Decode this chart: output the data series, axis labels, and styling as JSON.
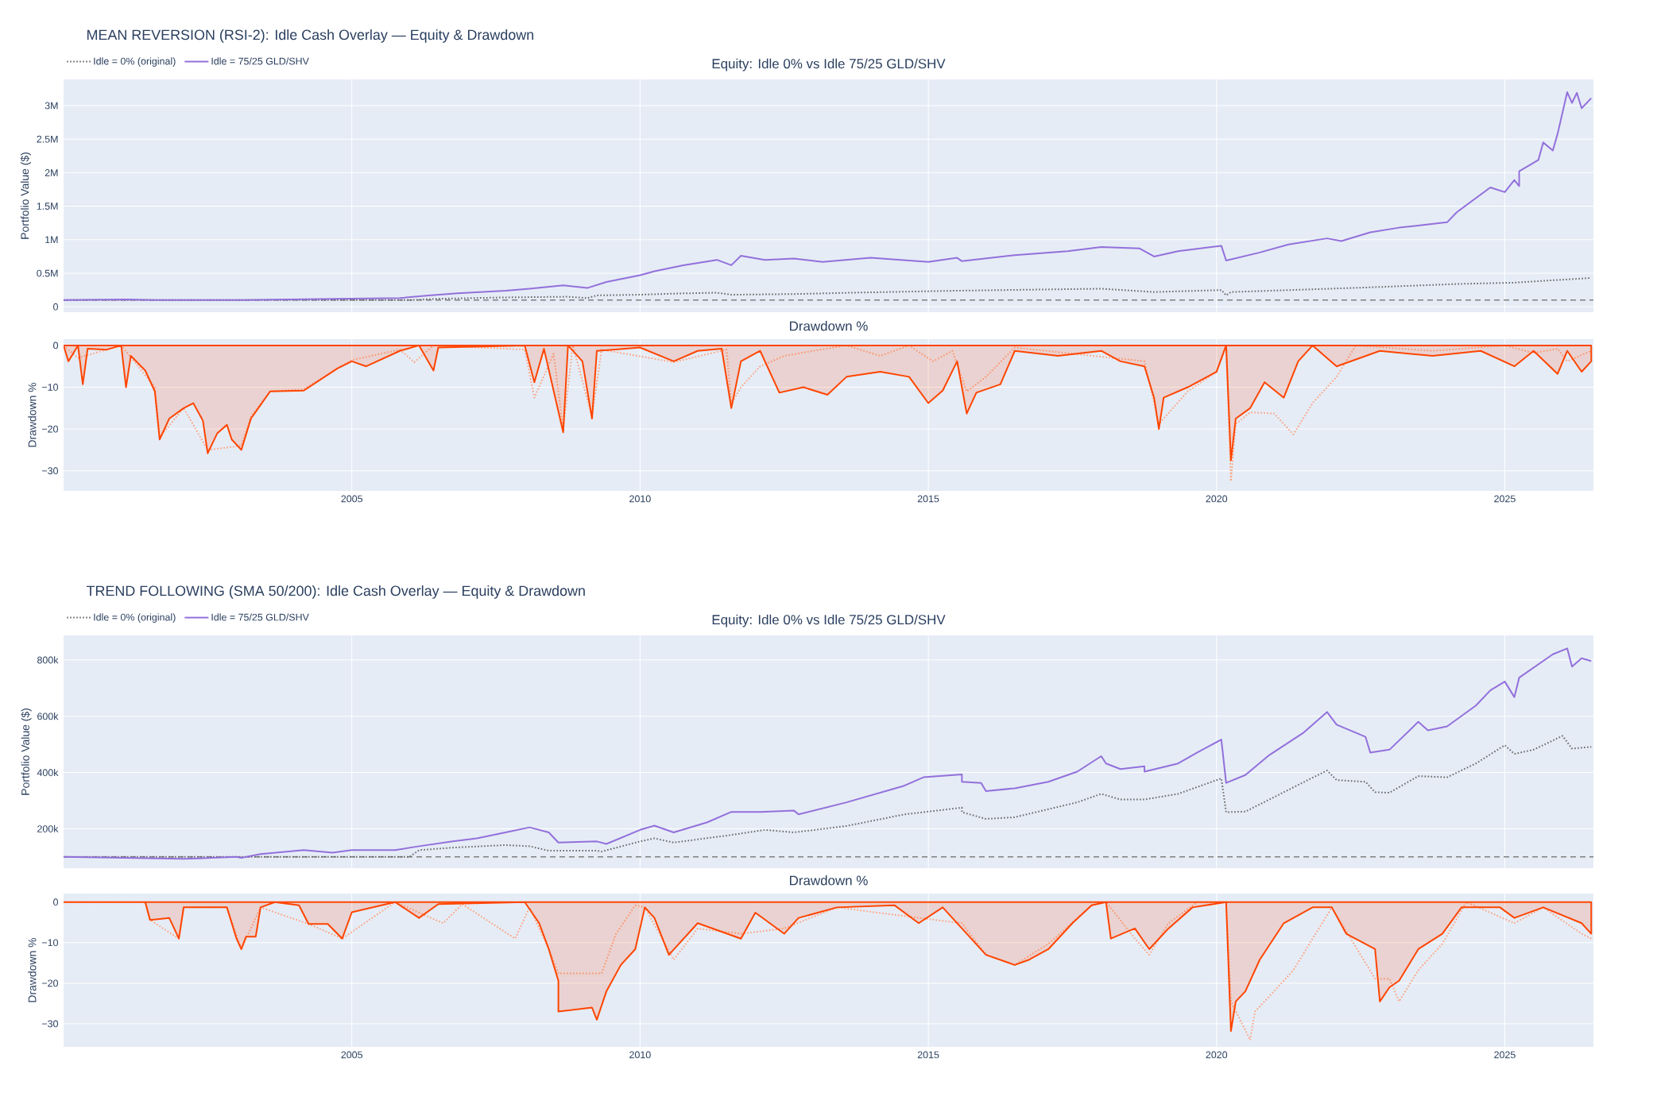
{
  "chart_data": [
    {
      "type": "line",
      "title": "MEAN REVERSION (RSI-2): Idle Cash Overlay — Equity & Drawdown",
      "subtitle": "Equity: Idle 0% vs Idle 75/25 GLD/SHV",
      "ylabel": "Portfolio Value ($)",
      "xlim": [
        "2000-01-01",
        "2026-07-15"
      ],
      "ylim": [
        -80000,
        3390000
      ],
      "xticks": [
        {
          "value": "2005-01-01",
          "label": null
        },
        {
          "value": "2010-01-01",
          "label": null
        },
        {
          "value": "2015-01-01",
          "label": null
        },
        {
          "value": "2020-01-01",
          "label": null
        },
        {
          "value": "2025-01-01",
          "label": null
        }
      ],
      "yticks": [
        0,
        {
          "value": 500000,
          "label": "0.5M"
        },
        {
          "value": 1000000,
          "label": "1M"
        },
        {
          "value": 1500000,
          "label": "1.5M"
        },
        {
          "value": 2000000,
          "label": "2M"
        },
        {
          "value": 2500000,
          "label": "2.5M"
        },
        {
          "value": 3000000,
          "label": "3M"
        }
      ],
      "tick_labels": "y",
      "grid": true,
      "legend": "top left",
      "ref_lines": [
        {
          "axis": "y",
          "value": 100000,
          "color": "#808080",
          "line_style": "dashed"
        }
      ],
      "series": [
        {
          "name": "Idle = 0% (original)",
          "color": "#696969",
          "line_style": "dotted",
          "x": [
            "2000-01",
            "2006-01",
            "2006-07",
            "2007-09",
            "2008-10",
            "2009-02",
            "2009-04",
            "2010-01",
            "2010-10",
            "2011-05",
            "2011-08",
            "2012-09",
            "2013-09",
            "2015-07",
            "2018-01",
            "2018-12",
            "2020-02",
            "2020-03",
            "2020-04",
            "2022-09",
            "2024-03",
            "2025-03",
            "2026-07"
          ],
          "values": [
            100000,
            100000,
            120000,
            140000,
            150000,
            130000,
            170000,
            180000,
            200000,
            210000,
            180000,
            190000,
            210000,
            240000,
            270000,
            220000,
            250000,
            170000,
            220000,
            290000,
            340000,
            360000,
            430000
          ]
        },
        {
          "name": "Idle = 75/25 GLD/SHV",
          "color": "#9370DB",
          "x": [
            "2000-01",
            "2001-02",
            "2001-08",
            "2002-08",
            "2003-02",
            "2005-01",
            "2005-11",
            "2006-05",
            "2006-11",
            "2007-09",
            "2008-02",
            "2008-09",
            "2009-02",
            "2009-06",
            "2010-01",
            "2010-04",
            "2010-10",
            "2011-05",
            "2011-08",
            "2011-10",
            "2012-03",
            "2012-09",
            "2013-03",
            "2014-01",
            "2015-01",
            "2015-07",
            "2015-08",
            "2016-07",
            "2017-06",
            "2018-01",
            "2018-09",
            "2018-12",
            "2019-05",
            "2020-02",
            "2020-03",
            "2020-10",
            "2021-04",
            "2021-12",
            "2022-03",
            "2022-09",
            "2023-03",
            "2023-08",
            "2024-01",
            "2024-03",
            "2024-10",
            "2025-01",
            "2025-03",
            "2025-04",
            "2025-04",
            "2025-08",
            "2025-09",
            "2025-11",
            "2025-12",
            "2026-02",
            "2026-03",
            "2026-04",
            "2026-05",
            "2026-07"
          ],
          "values": [
            100000,
            110000,
            100000,
            100000,
            100000,
            120000,
            130000,
            170000,
            200000,
            240000,
            270000,
            320000,
            280000,
            370000,
            470000,
            530000,
            620000,
            700000,
            620000,
            760000,
            700000,
            720000,
            670000,
            730000,
            670000,
            730000,
            680000,
            770000,
            830000,
            890000,
            870000,
            750000,
            830000,
            910000,
            690000,
            810000,
            930000,
            1020000,
            980000,
            1110000,
            1180000,
            1220000,
            1260000,
            1410000,
            1780000,
            1710000,
            1890000,
            1800000,
            2020000,
            2190000,
            2450000,
            2330000,
            2580000,
            3200000,
            3040000,
            3190000,
            2960000,
            3110000
          ]
        }
      ]
    },
    {
      "type": "line",
      "title": "Drawdown %",
      "ylabel": "Drawdown %",
      "xlim": [
        "2000-01-01",
        "2026-07-15"
      ],
      "ylim": [
        -34.8,
        1.5
      ],
      "xticks": [
        {
          "value": "2005-01-01",
          "label": "2005"
        },
        {
          "value": "2010-01-01",
          "label": "2010"
        },
        {
          "value": "2015-01-01",
          "label": "2015"
        },
        {
          "value": "2020-01-01",
          "label": "2020"
        },
        {
          "value": "2025-01-01",
          "label": "2025"
        }
      ],
      "yticks": [
        {
          "value": -30,
          "label": "−30"
        },
        {
          "value": -20,
          "label": "−20"
        },
        {
          "value": -10,
          "label": "−10"
        },
        0
      ],
      "grid": true,
      "series": [
        {
          "color": "#FFA07A",
          "line_style": "dotted",
          "x": [
            "2000-01",
            "2000-04",
            "2001-01",
            "2001-08",
            "2001-09",
            "2002-02",
            "2002-07",
            "2003-02",
            "2003-04",
            "2003-08",
            "2004-03",
            "2004-10",
            "2005-01",
            "2005-11",
            "2006-02",
            "2006-06",
            "2008-01",
            "2008-03",
            "2008-07",
            "2008-09",
            "2008-11",
            "2009-03",
            "2009-05",
            "2010-08",
            "2011-07",
            "2011-08",
            "2011-10",
            "2012-02",
            "2012-07",
            "2013-01",
            "2013-08",
            "2014-03",
            "2014-09",
            "2015-02",
            "2015-06",
            "2015-09",
            "2016-01",
            "2016-07",
            "2018-10",
            "2019-01",
            "2019-07",
            "2020-01",
            "2020-03",
            "2020-04",
            "2020-05",
            "2020-08",
            "2021-01",
            "2021-05",
            "2021-09",
            "2022-02",
            "2022-06",
            "2023-10",
            "2025-01",
            "2025-07",
            "2025-12",
            "2026-02",
            "2026-07"
          ],
          "values": [
            0,
            -3,
            0,
            -10,
            -22,
            -15,
            -25,
            -24,
            -17,
            -11,
            -10.5,
            -5.5,
            -3.5,
            -1,
            -4,
            0,
            -1,
            -12.5,
            -2,
            -20,
            0,
            -17,
            -1,
            -4,
            -1,
            -14,
            -10,
            -5,
            -2.5,
            -1.3,
            0,
            -2.5,
            0,
            -3.8,
            -1.3,
            -11,
            -7.5,
            -0.5,
            -3.8,
            -18.8,
            -11,
            -6.3,
            0,
            -32.5,
            -18.8,
            -16,
            -16.3,
            -21.3,
            -13.8,
            -7.5,
            0,
            -1.3,
            0,
            -1.8,
            -0.8,
            -3.8,
            -1.3
          ]
        },
        {
          "type": "area",
          "color": "#FF4500",
          "x": [
            "2000-01",
            "2000-02",
            "2000-04",
            "2000-05",
            "2000-06",
            "2000-10",
            "2001-01",
            "2001-02",
            "2001-03",
            "2001-06",
            "2001-08",
            "2001-09",
            "2001-11",
            "2002-02",
            "2002-04",
            "2002-06",
            "2002-07",
            "2002-09",
            "2002-11",
            "2002-12",
            "2003-02",
            "2003-04",
            "2003-08",
            "2004-03",
            "2004-10",
            "2005-01",
            "2005-04",
            "2005-11",
            "2006-03",
            "2006-06",
            "2006-07",
            "2008-01",
            "2008-03",
            "2008-05",
            "2008-09",
            "2008-10",
            "2009-01",
            "2009-03",
            "2009-04",
            "2010-01",
            "2010-08",
            "2011-01",
            "2011-06",
            "2011-08",
            "2011-10",
            "2012-02",
            "2012-06",
            "2012-11",
            "2013-04",
            "2013-08",
            "2014-03",
            "2014-09",
            "2015-01",
            "2015-04",
            "2015-07",
            "2015-09",
            "2015-11",
            "2016-04",
            "2016-07",
            "2017-04",
            "2018-01",
            "2018-05",
            "2018-10",
            "2018-12",
            "2019-01",
            "2019-02",
            "2019-07",
            "2020-01",
            "2020-03",
            "2020-04",
            "2020-05",
            "2020-08",
            "2020-11",
            "2021-03",
            "2021-06",
            "2021-09",
            "2022-02",
            "2022-11",
            "2023-10",
            "2024-08",
            "2025-03",
            "2025-07",
            "2025-12",
            "2026-02",
            "2026-05",
            "2026-07"
          ],
          "values": [
            0,
            -3.8,
            0,
            -9.3,
            -0.8,
            -1,
            0,
            -10,
            -2.5,
            -6,
            -11,
            -22.5,
            -17.5,
            -15,
            -13.8,
            -18,
            -25.8,
            -21,
            -19,
            -22.5,
            -25,
            -17.5,
            -11,
            -10.8,
            -5.5,
            -3.8,
            -5,
            -1.3,
            0,
            -6,
            -0.5,
            0,
            -8.8,
            -0.8,
            -20.8,
            0,
            -3.8,
            -17.5,
            -1.3,
            -0.5,
            -3.8,
            -1.3,
            -0.8,
            -15,
            -3.8,
            -1.3,
            -11.3,
            -10,
            -11.8,
            -7.5,
            -6.3,
            -7.5,
            -13.8,
            -10.8,
            -3.8,
            -16.3,
            -11.3,
            -9.3,
            -1.3,
            -2.5,
            -1.3,
            -3.8,
            -5,
            -12.5,
            -20,
            -12.5,
            -10,
            -6.3,
            0,
            -27.5,
            -17.5,
            -15,
            -8.8,
            -12.5,
            -3.8,
            0,
            -5,
            -1.3,
            -2.5,
            -1.3,
            -5,
            -1.3,
            -6.8,
            -1.3,
            -6.3,
            -3.8
          ]
        }
      ]
    },
    {
      "type": "line",
      "title": "TREND FOLLOWING (SMA 50/200): Idle Cash Overlay — Equity & Drawdown",
      "subtitle": "Equity: Idle 0% vs Idle 75/25 GLD/SHV",
      "ylabel": "Portfolio Value ($)",
      "xlim": [
        "2000-01-01",
        "2026-07-15"
      ],
      "ylim": [
        60000,
        887000
      ],
      "xticks": [
        {
          "value": "2005-01-01",
          "label": null
        },
        {
          "value": "2010-01-01",
          "label": null
        },
        {
          "value": "2015-01-01",
          "label": null
        },
        {
          "value": "2020-01-01",
          "label": null
        },
        {
          "value": "2025-01-01",
          "label": null
        }
      ],
      "yticks": [
        {
          "value": 200000,
          "label": "200k"
        },
        {
          "value": 400000,
          "label": "400k"
        },
        {
          "value": 600000,
          "label": "600k"
        },
        {
          "value": 800000,
          "label": "800k"
        }
      ],
      "tick_labels": "y",
      "grid": true,
      "legend": "top left",
      "ref_lines": [
        {
          "axis": "y",
          "value": 100000,
          "color": "#808080",
          "line_style": "dashed"
        }
      ],
      "series": [
        {
          "name": "Idle = 0% (original)",
          "color": "#696969",
          "line_style": "dotted",
          "x": [
            "2000-01",
            "2006-01",
            "2006-03",
            "2006-10",
            "2007-09",
            "2008-02",
            "2008-06",
            "2009-04",
            "2009-05",
            "2010-01",
            "2010-04",
            "2010-08",
            "2011-08",
            "2012-03",
            "2012-09",
            "2013-08",
            "2014-08",
            "2015-08",
            "2015-08",
            "2016-01",
            "2016-07",
            "2017-08",
            "2018-01",
            "2018-05",
            "2018-10",
            "2019-05",
            "2020-02",
            "2020-03",
            "2020-07",
            "2020-12",
            "2021-08",
            "2021-12",
            "2022-02",
            "2022-08",
            "2022-10",
            "2023-01",
            "2023-07",
            "2024-01",
            "2024-07",
            "2025-01",
            "2025-03",
            "2025-07",
            "2026-01",
            "2026-03",
            "2026-07"
          ],
          "values": [
            100000,
            100000,
            124000,
            133000,
            142000,
            138000,
            122000,
            122000,
            119000,
            155000,
            166000,
            151000,
            178000,
            196000,
            187000,
            210000,
            251000,
            275000,
            259000,
            235000,
            241000,
            294000,
            324000,
            304000,
            304000,
            324000,
            379000,
            259000,
            261000,
            304000,
            373000,
            407000,
            373000,
            367000,
            330000,
            328000,
            387000,
            383000,
            432000,
            497000,
            466000,
            481000,
            530000,
            485000,
            491000
          ]
        },
        {
          "name": "Idle = 75/25 GLD/SHV",
          "color": "#9370DB",
          "x": [
            "2000-01",
            "2002-02",
            "2003-01",
            "2003-02",
            "2003-06",
            "2004-03",
            "2004-09",
            "2005-01",
            "2005-10",
            "2006-03",
            "2006-10",
            "2007-03",
            "2007-09",
            "2008-02",
            "2008-06",
            "2008-08",
            "2009-04",
            "2009-06",
            "2010-01",
            "2010-04",
            "2010-08",
            "2011-03",
            "2011-08",
            "2012-02",
            "2012-09",
            "2012-10",
            "2013-08",
            "2014-08",
            "2014-12",
            "2015-08",
            "2015-08",
            "2015-12",
            "2016-01",
            "2016-07",
            "2017-02",
            "2017-08",
            "2018-01",
            "2018-02",
            "2018-05",
            "2018-10",
            "2018-10",
            "2019-05",
            "2019-09",
            "2020-02",
            "2020-03",
            "2020-07",
            "2020-12",
            "2021-07",
            "2021-12",
            "2022-02",
            "2022-08",
            "2022-09",
            "2023-01",
            "2023-07",
            "2023-09",
            "2024-01",
            "2024-07",
            "2024-10",
            "2025-01",
            "2025-03",
            "2025-04",
            "2025-11",
            "2026-02",
            "2026-03",
            "2026-05",
            "2026-07"
          ],
          "values": [
            100000,
            93000,
            100000,
            97000,
            110000,
            124000,
            115000,
            124000,
            124000,
            138000,
            155000,
            166000,
            187000,
            205000,
            187000,
            151000,
            155000,
            146000,
            196000,
            211000,
            187000,
            223000,
            260000,
            260000,
            265000,
            251000,
            294000,
            353000,
            383000,
            393000,
            367000,
            363000,
            334000,
            344000,
            367000,
            403000,
            458000,
            432000,
            412000,
            422000,
            403000,
            432000,
            471000,
            517000,
            363000,
            391000,
            462000,
            540000,
            615000,
            570000,
            527000,
            471000,
            481000,
            580000,
            550000,
            564000,
            638000,
            692000,
            723000,
            668000,
            737000,
            820000,
            841000,
            776000,
            806000,
            796000
          ]
        }
      ]
    },
    {
      "type": "line",
      "title": "Drawdown %",
      "ylabel": "Drawdown %",
      "xlim": [
        "2000-01-01",
        "2026-07-15"
      ],
      "ylim": [
        -35.7,
        2.1
      ],
      "xticks": [
        {
          "value": "2005-01-01",
          "label": "2005"
        },
        {
          "value": "2010-01-01",
          "label": "2010"
        },
        {
          "value": "2015-01-01",
          "label": "2015"
        },
        {
          "value": "2020-01-01",
          "label": "2020"
        },
        {
          "value": "2025-01-01",
          "label": "2025"
        }
      ],
      "yticks": [
        {
          "value": -30,
          "label": "−30"
        },
        {
          "value": -20,
          "label": "−20"
        },
        {
          "value": -10,
          "label": "−10"
        },
        0
      ],
      "grid": true,
      "series": [
        {
          "color": "#FFA07A",
          "line_style": "dotted",
          "x": [
            "2000-01",
            "2001-06",
            "2001-07",
            "2002-01",
            "2002-02",
            "2002-11",
            "2003-02",
            "2003-06",
            "2004-04",
            "2004-11",
            "2005-10",
            "2006-08",
            "2006-12",
            "2007-11",
            "2008-02",
            "2008-06",
            "2008-08",
            "2009-05",
            "2009-08",
            "2009-12",
            "2010-02",
            "2010-08",
            "2011-01",
            "2011-10",
            "2012-07",
            "2013-06",
            "2014-11",
            "2015-08",
            "2016-01",
            "2016-07",
            "2017-02",
            "2017-11",
            "2018-02",
            "2018-08",
            "2018-11",
            "2019-03",
            "2019-09",
            "2020-03",
            "2020-04",
            "2020-08",
            "2020-09",
            "2020-11",
            "2021-05",
            "2021-09",
            "2022-01",
            "2022-10",
            "2023-01",
            "2023-03",
            "2023-07",
            "2023-12",
            "2024-05",
            "2025-03",
            "2025-09",
            "2026-05",
            "2026-07"
          ],
          "values": [
            0,
            0,
            -4.4,
            -9,
            -1.3,
            -1.3,
            -11.6,
            -1.3,
            -5.4,
            -9,
            0,
            -5.2,
            -0.5,
            -9,
            -1.3,
            -11.6,
            -17.6,
            -17.6,
            -7.8,
            -0.8,
            -1.3,
            -14.2,
            -6.5,
            -7.8,
            -6.5,
            -1.3,
            -3.9,
            -5.2,
            -13,
            -15.5,
            -10.3,
            -0.8,
            0,
            -9,
            -13,
            -5.2,
            0,
            0,
            -24.5,
            -34,
            -27,
            -24.5,
            -16.8,
            -9,
            -1.3,
            -18.9,
            -18.9,
            -24.5,
            -16.8,
            -10.3,
            0,
            -5.2,
            -1.3,
            -7.8,
            -9
          ]
        },
        {
          "type": "area",
          "color": "#FF4500",
          "x": [
            "2000-01",
            "2001-06",
            "2001-07",
            "2001-11",
            "2002-01",
            "2002-02",
            "2002-11",
            "2003-01",
            "2003-02",
            "2003-03",
            "2003-05",
            "2003-06",
            "2003-09",
            "2004-02",
            "2004-04",
            "2004-08",
            "2004-11",
            "2005-01",
            "2005-10",
            "2006-03",
            "2006-07",
            "2008-01",
            "2008-04",
            "2008-06",
            "2008-08",
            "2008-08",
            "2009-03",
            "2009-04",
            "2009-06",
            "2009-09",
            "2009-12",
            "2010-02",
            "2010-04",
            "2010-07",
            "2011-01",
            "2011-10",
            "2012-01",
            "2012-07",
            "2012-10",
            "2013-06",
            "2014-06",
            "2014-11",
            "2015-04",
            "2015-08",
            "2016-01",
            "2016-07",
            "2016-10",
            "2017-02",
            "2017-07",
            "2017-11",
            "2018-02",
            "2018-03",
            "2018-08",
            "2018-11",
            "2019-03",
            "2019-08",
            "2020-03",
            "2020-04",
            "2020-05",
            "2020-07",
            "2020-10",
            "2021-03",
            "2021-09",
            "2022-01",
            "2022-04",
            "2022-10",
            "2022-11",
            "2023-01",
            "2023-03",
            "2023-07",
            "2023-12",
            "2024-04",
            "2024-12",
            "2025-03",
            "2025-09",
            "2026-05",
            "2026-07"
          ],
          "values": [
            0,
            0,
            -4.4,
            -3.9,
            -9,
            -1.3,
            -1.3,
            -9,
            -11.6,
            -8.5,
            -8.5,
            -1.3,
            0,
            -0.8,
            -5.4,
            -5.4,
            -9,
            -2.5,
            0,
            -3.9,
            -0.5,
            0,
            -5.2,
            -11.6,
            -19.4,
            -27,
            -26,
            -29,
            -22,
            -15.5,
            -11.6,
            -1.3,
            -3.9,
            -13,
            -5.2,
            -9,
            -2.6,
            -7.8,
            -3.9,
            -1.3,
            -0.8,
            -5.2,
            -1.3,
            -6.5,
            -13,
            -15.5,
            -14.2,
            -11.6,
            -5.2,
            -0.8,
            0,
            -9,
            -6.5,
            -11.6,
            -6.5,
            -1.3,
            0,
            -31.8,
            -24.5,
            -22,
            -14.2,
            -5.2,
            -1.3,
            -1.3,
            -7.8,
            -11.6,
            -24.5,
            -21,
            -19.4,
            -11.6,
            -7.8,
            -1.3,
            -1.3,
            -3.9,
            -1.3,
            -5.2,
            -7.8
          ]
        }
      ]
    }
  ]
}
